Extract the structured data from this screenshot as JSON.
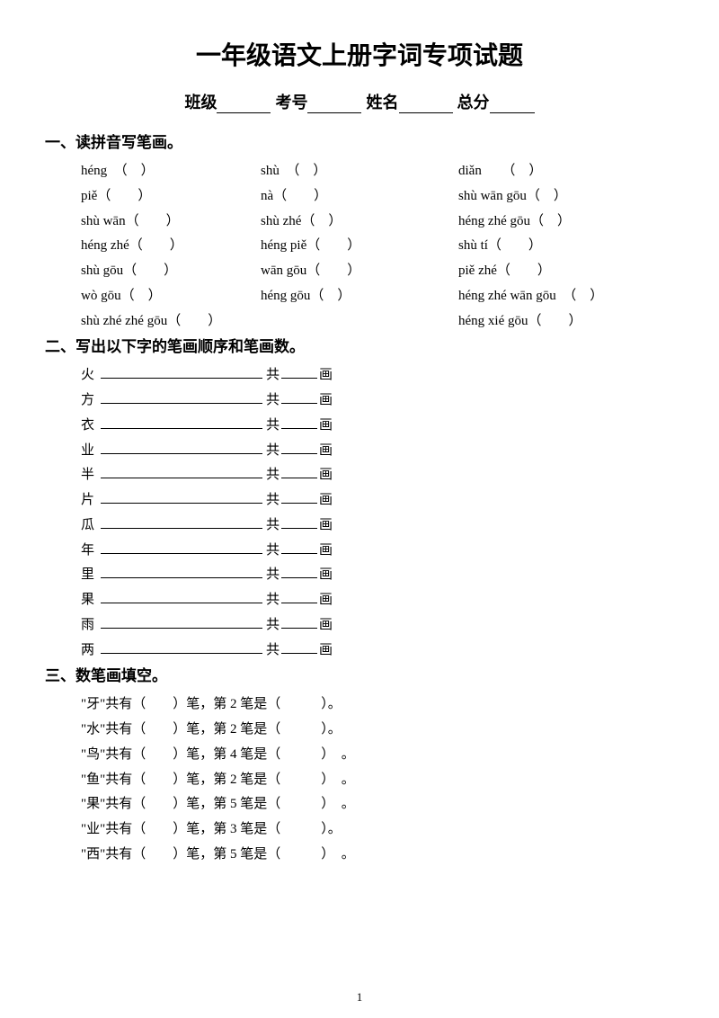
{
  "title": "一年级语文上册字词专项试题",
  "info": {
    "class_label": "班级",
    "exam_no_label": "考号",
    "name_label": "姓名",
    "score_label": "总分"
  },
  "section1": {
    "header": "一、读拼音写笔画。",
    "rows": [
      {
        "c1": "héng　（　）",
        "c2": "shù　（　）",
        "c3": "diǎn　　（　）"
      },
      {
        "c1": "piě（　　）",
        "c2": "nà（　　）",
        "c3": "shù wān gōu（　）"
      },
      {
        "c1": "shù wān（　　）",
        "c2": "shù zhé（　）",
        "c3": "héng zhé gōu（　）"
      },
      {
        "c1": "héng zhé（　　）",
        "c2": "héng piě（　　）",
        "c3": "shù tí（　　）"
      },
      {
        "c1": "shù gōu（　　）",
        "c2": "wān gōu（　　）",
        "c3": "piě zhé（　　）"
      },
      {
        "c1": "wò gōu（　）",
        "c2": "héng gōu（　）",
        "c3": "héng zhé wān gōu　（　）"
      },
      {
        "c1": "shù zhé zhé gōu（　　）",
        "c2": "",
        "c3": "héng xié gōu（　　）"
      }
    ]
  },
  "section2": {
    "header": "二、写出以下字的笔画顺序和笔画数。",
    "gong": "共",
    "hua": "画",
    "chars": [
      "火",
      "方",
      "衣",
      "业",
      "半",
      "片",
      "瓜",
      "年",
      "里",
      "果",
      "雨",
      "两"
    ]
  },
  "section3": {
    "header": "三、数笔画填空。",
    "items": [
      {
        "text": "\"牙\"共有（　　）笔，第 2 笔是（　　　）。"
      },
      {
        "text": "\"水\"共有（　　）笔，第 2 笔是（　　　）。"
      },
      {
        "text": "\"鸟\"共有（　　）笔，第 4 笔是（　　　）　。"
      },
      {
        "text": "\"鱼\"共有（　　）笔，第 2 笔是（　　　）　。"
      },
      {
        "text": "\"果\"共有（　　）笔，第 5 笔是（　　　）　。"
      },
      {
        "text": "\"业\"共有（　　）笔，第 3 笔是（　　　）。"
      },
      {
        "text": "\"西\"共有（　　）笔，第 5 笔是（　　　）　。"
      }
    ]
  },
  "page_number": "1"
}
